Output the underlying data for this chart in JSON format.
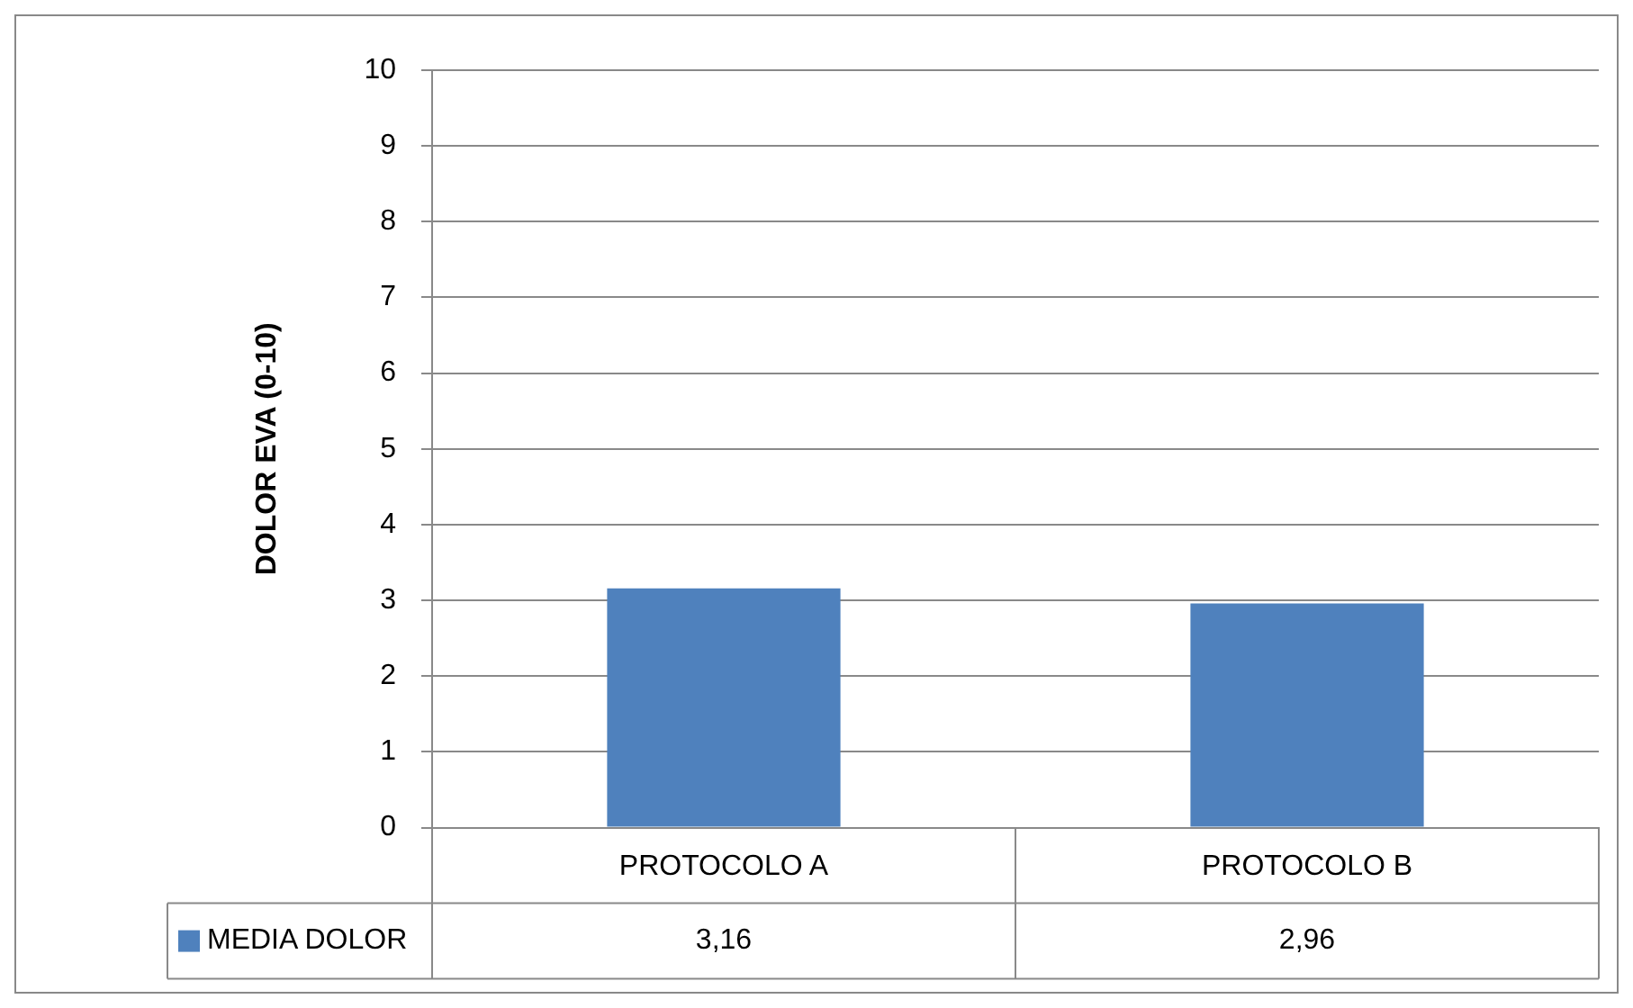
{
  "chart_data": {
    "type": "bar",
    "ylabel": "DOLOR EVA (0-10)",
    "categories": [
      "PROTOCOLO A",
      "PROTOCOLO B"
    ],
    "series": [
      {
        "name": "MEDIA DOLOR",
        "color": "#4f81bd",
        "values": [
          3.16,
          2.96
        ],
        "value_labels": [
          "3,16",
          "2,96"
        ]
      }
    ],
    "ylim": [
      0,
      10
    ],
    "yticks": [
      0,
      1,
      2,
      3,
      4,
      5,
      6,
      7,
      8,
      9,
      10
    ],
    "grid": "y",
    "legend": "bottom"
  }
}
